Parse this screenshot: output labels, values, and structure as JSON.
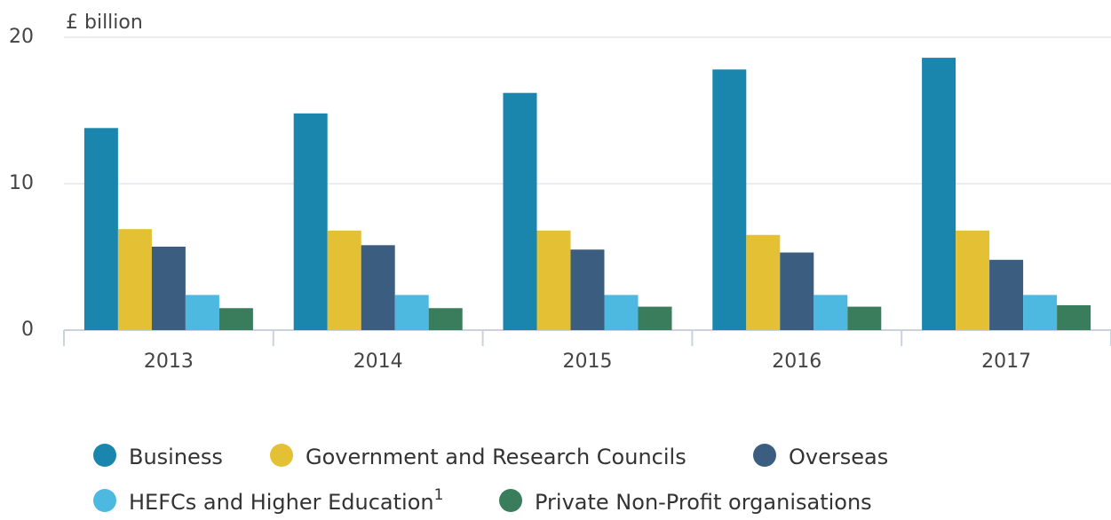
{
  "chart_data": {
    "type": "bar",
    "y_label": "£ billion",
    "categories": [
      "2013",
      "2014",
      "2015",
      "2016",
      "2017"
    ],
    "series": [
      {
        "name": "Business",
        "color": "#1a85ad",
        "values": [
          13.8,
          14.8,
          16.2,
          17.8,
          18.6
        ]
      },
      {
        "name": "Government and Research Councils",
        "color": "#e4c035",
        "values": [
          6.9,
          6.8,
          6.8,
          6.5,
          6.8
        ]
      },
      {
        "name": "Overseas",
        "color": "#3b5e80",
        "values": [
          5.7,
          5.8,
          5.5,
          5.3,
          4.8
        ]
      },
      {
        "name": "HEFCs and Higher Education",
        "superscript": "1",
        "color": "#4db8e0",
        "values": [
          2.4,
          2.4,
          2.4,
          2.4,
          2.4
        ]
      },
      {
        "name": "Private Non-Profit organisations",
        "color": "#3a7d5c",
        "values": [
          1.5,
          1.5,
          1.6,
          1.6,
          1.7
        ]
      }
    ],
    "ylim": [
      0,
      20
    ],
    "yticks": [
      0,
      10,
      20
    ],
    "grid": true
  }
}
